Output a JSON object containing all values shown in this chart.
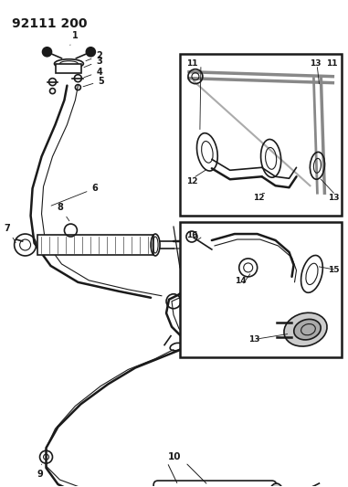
{
  "title": "92111 200",
  "bg_color": "#ffffff",
  "line_color": "#1a1a1a",
  "fig_width": 3.81,
  "fig_height": 5.33,
  "dpi": 100,
  "gray": "#888888",
  "light_gray": "#bbbbbb"
}
